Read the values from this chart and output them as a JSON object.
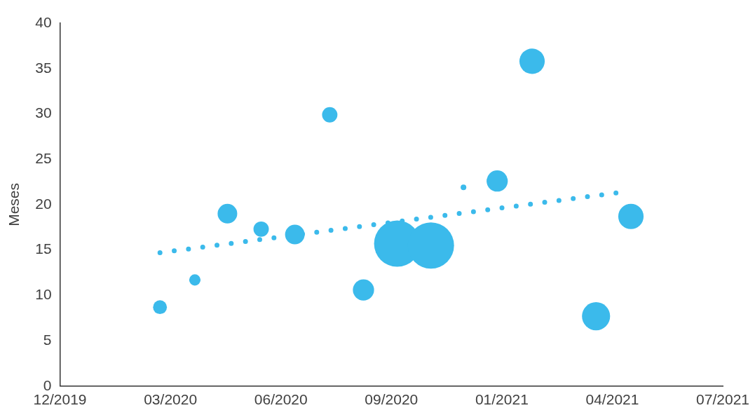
{
  "chart_data": {
    "type": "bubble",
    "ylabel": "Meses",
    "xlim": [
      "2019-12-20",
      "2021-07-12"
    ],
    "xticks": [
      {
        "value": "2019-12-20",
        "label": "12/2019"
      },
      {
        "value": "2020-03-24",
        "label": "03/2020"
      },
      {
        "value": "2020-06-27",
        "label": "06/2020"
      },
      {
        "value": "2020-09-30",
        "label": "09/2020"
      },
      {
        "value": "2021-01-03",
        "label": "01/2021"
      },
      {
        "value": "2021-04-08",
        "label": "04/2021"
      },
      {
        "value": "2021-07-12",
        "label": "07/2021"
      }
    ],
    "ylim": [
      0,
      40
    ],
    "yticks": [
      0,
      5,
      10,
      15,
      20,
      25,
      30,
      35,
      40
    ],
    "grid": false,
    "legend": false,
    "series": [
      {
        "color": "#3bbaeb",
        "x": [
          "2020-03-15",
          "2020-04-14",
          "2020-05-12",
          "2020-06-10",
          "2020-07-09",
          "2020-08-08",
          "2020-09-06",
          "2020-10-05",
          "2020-11-03",
          "2020-12-01",
          "2020-12-30",
          "2021-01-29",
          "2021-03-25",
          "2021-04-24"
        ],
        "values": [
          8.7,
          11.7,
          19.0,
          17.3,
          16.7,
          29.9,
          10.6,
          15.7,
          15.5,
          21.9,
          22.6,
          35.8,
          7.7,
          18.7
        ],
        "sizes": [
          0.09,
          0.06,
          0.18,
          0.11,
          0.18,
          0.11,
          0.21,
          1,
          1,
          0.015,
          0.21,
          0.3,
          0.37,
          0.3
        ]
      },
      {
        "type": "line",
        "color": "#3bbaeb",
        "line_style": "dotted",
        "marker": "none",
        "x": [
          "2020-03-15",
          "2021-04-12"
        ],
        "values": [
          14.7,
          21.3
        ]
      }
    ]
  }
}
